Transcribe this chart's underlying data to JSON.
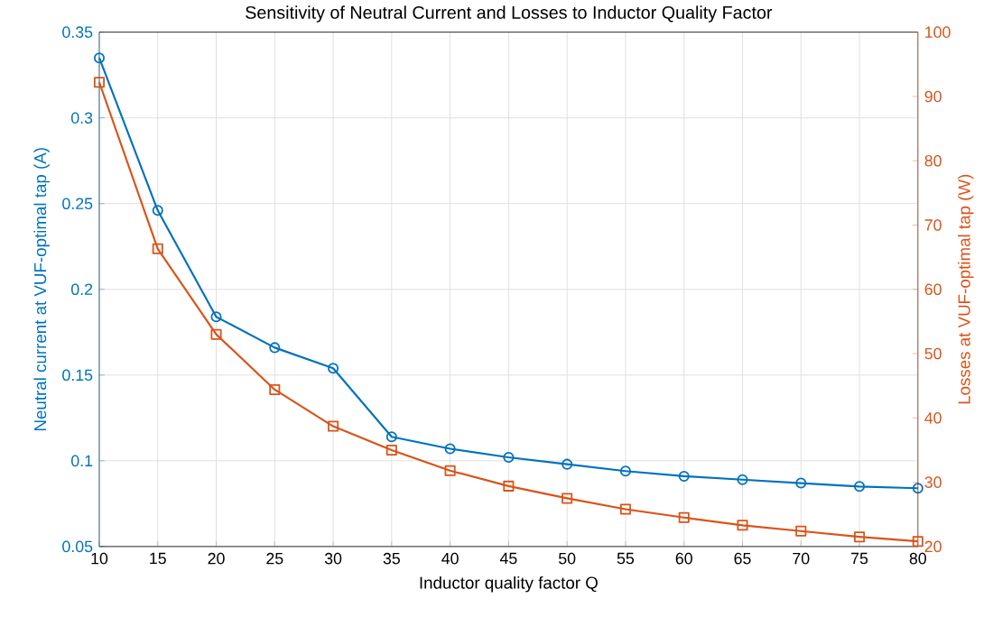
{
  "chart_data": {
    "type": "line",
    "title": "Sensitivity of Neutral Current and Losses to Inductor Quality Factor",
    "xlabel": "Inductor quality factor Q",
    "ylabel": "Neutral current at VUF-optimal tap (A)",
    "y2label": "Losses at VUF-optimal tap (W)",
    "x": [
      10,
      15,
      20,
      25,
      30,
      35,
      40,
      45,
      50,
      55,
      60,
      65,
      70,
      75,
      80
    ],
    "series": [
      {
        "color": "#0072bd",
        "marker": "circle",
        "values": [
          0.335,
          0.246,
          0.184,
          0.166,
          0.154,
          0.114,
          0.107,
          0.102,
          0.098,
          0.094,
          0.091,
          0.089,
          0.087,
          0.085,
          0.084
        ]
      },
      {
        "color": "#d95319",
        "marker": "square",
        "axis": "y2",
        "values": [
          92.2,
          66.3,
          53.0,
          44.4,
          38.7,
          35.0,
          31.8,
          29.4,
          27.5,
          25.8,
          24.5,
          23.3,
          22.4,
          21.5,
          20.8
        ]
      }
    ],
    "xlim": [
      10,
      80
    ],
    "xticks": [
      10,
      15,
      20,
      25,
      30,
      35,
      40,
      45,
      50,
      55,
      60,
      65,
      70,
      75,
      80
    ],
    "ylim": [
      0.05,
      0.35
    ],
    "yticks": [
      0.05,
      0.1,
      0.15,
      0.2,
      0.25,
      0.3,
      0.35
    ],
    "y2lim": [
      20,
      100
    ],
    "y2ticks": [
      20,
      30,
      40,
      50,
      60,
      70,
      80,
      90,
      100
    ],
    "grid": true,
    "line_style": "solid"
  }
}
